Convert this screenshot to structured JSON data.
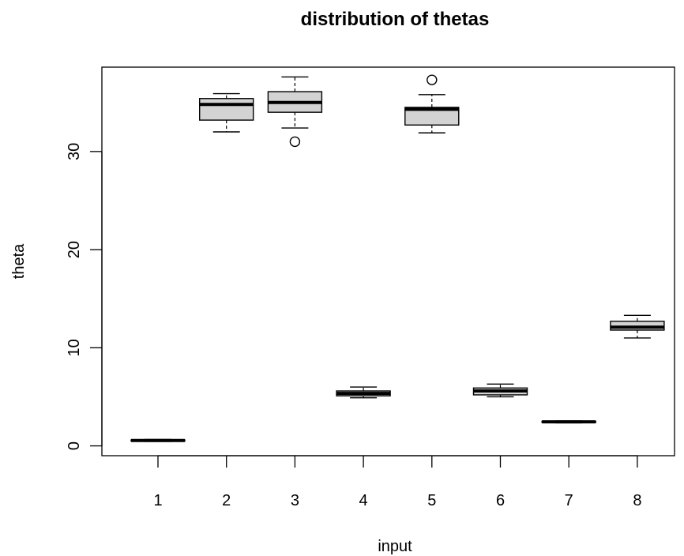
{
  "chart_data": {
    "type": "boxplot",
    "title": "distribution of thetas",
    "xlabel": "input",
    "ylabel": "theta",
    "categories": [
      "1",
      "2",
      "3",
      "4",
      "5",
      "6",
      "7",
      "8"
    ],
    "yticks": [
      0,
      10,
      20,
      30
    ],
    "ylim": [
      -1.0,
      38.6
    ],
    "grid": false,
    "box_fill": "#d3d3d3",
    "boxes": [
      {
        "category": "1",
        "whisker_low": 0.45,
        "q1": 0.5,
        "median": 0.55,
        "q3": 0.6,
        "whisker_high": 0.65,
        "outliers": []
      },
      {
        "category": "2",
        "whisker_low": 32.0,
        "q1": 33.2,
        "median": 34.8,
        "q3": 35.4,
        "whisker_high": 35.9,
        "outliers": []
      },
      {
        "category": "3",
        "whisker_low": 32.4,
        "q1": 34.0,
        "median": 35.0,
        "q3": 36.1,
        "whisker_high": 37.6,
        "outliers": [
          31.0
        ]
      },
      {
        "category": "4",
        "whisker_low": 4.9,
        "q1": 5.1,
        "median": 5.35,
        "q3": 5.6,
        "whisker_high": 6.0,
        "outliers": []
      },
      {
        "category": "5",
        "whisker_low": 31.9,
        "q1": 32.7,
        "median": 34.3,
        "q3": 34.5,
        "whisker_high": 35.8,
        "outliers": [
          37.3
        ]
      },
      {
        "category": "6",
        "whisker_low": 5.0,
        "q1": 5.2,
        "median": 5.6,
        "q3": 5.9,
        "whisker_high": 6.3,
        "outliers": []
      },
      {
        "category": "7",
        "whisker_low": 2.35,
        "q1": 2.4,
        "median": 2.45,
        "q3": 2.5,
        "whisker_high": 2.55,
        "outliers": []
      },
      {
        "category": "8",
        "whisker_low": 11.0,
        "q1": 11.8,
        "median": 12.1,
        "q3": 12.7,
        "whisker_high": 13.3,
        "outliers": []
      }
    ]
  }
}
